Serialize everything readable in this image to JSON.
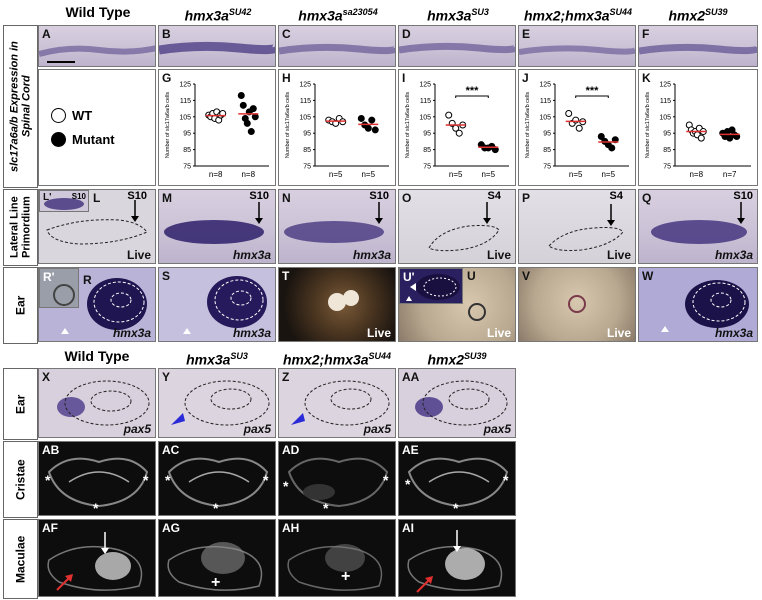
{
  "headers_top": [
    {
      "base": "Wild Type",
      "sup": "",
      "italic": false
    },
    {
      "base": "hmx3a",
      "sup": "SU42",
      "italic": true
    },
    {
      "base": "hmx3a",
      "sup": "sa23054",
      "italic": true
    },
    {
      "base": "hmx3a",
      "sup": "SU3",
      "italic": true
    },
    {
      "base": "hmx2;hmx3a",
      "sup": "SU44",
      "italic": true
    },
    {
      "base": "hmx2",
      "sup": "SU39",
      "italic": true
    }
  ],
  "headers_bottom": [
    {
      "base": "Wild Type",
      "sup": "",
      "italic": false
    },
    {
      "base": "hmx3a",
      "sup": "SU3",
      "italic": true
    },
    {
      "base": "hmx2;hmx3a",
      "sup": "SU44",
      "italic": true
    },
    {
      "base": "hmx2",
      "sup": "SU39",
      "italic": true
    }
  ],
  "row_labels": {
    "spinal": "slc17a6a/b Expression in Spinal Cord",
    "lateral": "Lateral Line Primordium",
    "ear": "Ear",
    "ear2": "Ear",
    "cristae": "Cristae",
    "maculae": "Maculae"
  },
  "legend": {
    "wt": "WT",
    "mutant": "Mutant"
  },
  "panels": {
    "A": "A",
    "B": "B",
    "C": "C",
    "D": "D",
    "E": "E",
    "F": "F",
    "G": "G",
    "H": "H",
    "I": "I",
    "J": "J",
    "K": "K",
    "L1": "L'",
    "L": "L",
    "M": "M",
    "N": "N",
    "O": "O",
    "P": "P",
    "Q": "Q",
    "R1": "R'",
    "R": "R",
    "S": "S",
    "T": "T",
    "U1": "U'",
    "U": "U",
    "V": "V",
    "W": "W",
    "X": "X",
    "Y": "Y",
    "Z": "Z",
    "AA": "AA",
    "AB": "AB",
    "AC": "AC",
    "AD": "AD",
    "AE": "AE",
    "AF": "AF",
    "AG": "AG",
    "AH": "AH",
    "AI": "AI"
  },
  "annot": {
    "s10": "S10",
    "s4": "S4",
    "live": "Live",
    "hmx3a": "hmx3a",
    "pax5": "pax5",
    "star": "*",
    "plus": "+",
    "sig": "***"
  },
  "colors": {
    "accent_red": "#e03030",
    "arrow_blue": "#2a2ad8",
    "ish_purple": "#3a2a7a"
  },
  "chart_data": [
    {
      "type": "scatter",
      "panel": "G",
      "ylabel": "Number of slc17a6a/b cells",
      "ylim": [
        75,
        125
      ],
      "yticks": [
        75,
        85,
        95,
        105,
        115,
        125
      ],
      "series": [
        {
          "name": "WT",
          "values": [
            106,
            105,
            107,
            104,
            108,
            103,
            106,
            107
          ]
        },
        {
          "name": "Mutant",
          "values": [
            118,
            112,
            104,
            101,
            108,
            96,
            110,
            105
          ]
        }
      ],
      "n": [
        "n=8",
        "n=8"
      ],
      "sig": ""
    },
    {
      "type": "scatter",
      "panel": "H",
      "ylabel": "Number of slc17a6a/b cells",
      "ylim": [
        75,
        125
      ],
      "yticks": [
        75,
        85,
        95,
        105,
        115,
        125
      ],
      "series": [
        {
          "name": "WT",
          "values": [
            103,
            102,
            101,
            104,
            102
          ]
        },
        {
          "name": "Mutant",
          "values": [
            104,
            100,
            98,
            103,
            97
          ]
        }
      ],
      "n": [
        "n=5",
        "n=5"
      ],
      "sig": ""
    },
    {
      "type": "scatter",
      "panel": "I",
      "ylabel": "Number of slc17a6a/b cells",
      "ylim": [
        75,
        125
      ],
      "yticks": [
        75,
        85,
        95,
        105,
        115,
        125
      ],
      "series": [
        {
          "name": "WT",
          "values": [
            106,
            101,
            98,
            95,
            100
          ]
        },
        {
          "name": "Mutant",
          "values": [
            88,
            86,
            86,
            87,
            85
          ]
        }
      ],
      "n": [
        "n=5",
        "n=5"
      ],
      "sig": "***"
    },
    {
      "type": "scatter",
      "panel": "J",
      "ylabel": "Number of slc17a6a/b cells",
      "ylim": [
        75,
        125
      ],
      "yticks": [
        75,
        85,
        95,
        105,
        115,
        125
      ],
      "series": [
        {
          "name": "WT",
          "values": [
            107,
            101,
            103,
            98,
            102
          ]
        },
        {
          "name": "Mutant",
          "values": [
            93,
            90,
            88,
            86,
            91
          ]
        }
      ],
      "n": [
        "n=5",
        "n=5"
      ],
      "sig": "***"
    },
    {
      "type": "scatter",
      "panel": "K",
      "ylabel": "Number of slc17a6a/b cells",
      "ylim": [
        75,
        125
      ],
      "yticks": [
        75,
        85,
        95,
        105,
        115,
        125
      ],
      "series": [
        {
          "name": "WT",
          "values": [
            100,
            97,
            95,
            96,
            94,
            98,
            92,
            96
          ]
        },
        {
          "name": "Mutant",
          "values": [
            95,
            93,
            96,
            92,
            97,
            94,
            93
          ]
        }
      ],
      "n": [
        "n=8",
        "n=7"
      ],
      "sig": ""
    }
  ]
}
